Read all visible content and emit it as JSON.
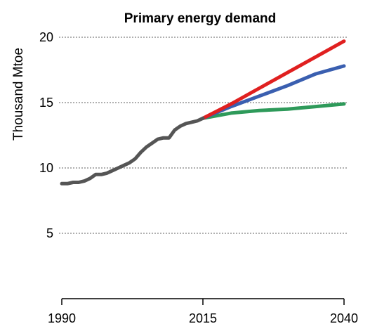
{
  "chart_data": {
    "type": "line",
    "title": "Primary energy demand",
    "ylabel": "Thousand Mtoe",
    "xlabel": "",
    "xlim": [
      1990,
      2040
    ],
    "ylim": [
      0,
      21
    ],
    "yticks": [
      5,
      10,
      15,
      20
    ],
    "xticks": [
      1990,
      2015,
      2040
    ],
    "grid": true,
    "series": [
      {
        "color": "#555555",
        "x": [
          1990,
          1991,
          1992,
          1993,
          1994,
          1995,
          1996,
          1997,
          1998,
          1999,
          2000,
          2001,
          2002,
          2003,
          2004,
          2005,
          2006,
          2007,
          2008,
          2009,
          2010,
          2011,
          2012,
          2013,
          2014,
          2015
        ],
        "y": [
          8.8,
          8.8,
          8.9,
          8.9,
          9.0,
          9.2,
          9.5,
          9.5,
          9.6,
          9.8,
          10.0,
          10.2,
          10.4,
          10.7,
          11.2,
          11.6,
          11.9,
          12.2,
          12.3,
          12.3,
          12.9,
          13.2,
          13.4,
          13.5,
          13.6,
          13.8
        ]
      },
      {
        "color": "#e02020",
        "x": [
          2015,
          2020,
          2025,
          2030,
          2035,
          2040
        ],
        "y": [
          13.8,
          14.9,
          16.1,
          17.3,
          18.5,
          19.7
        ]
      },
      {
        "color": "#3a5fb0",
        "x": [
          2015,
          2020,
          2025,
          2030,
          2035,
          2040
        ],
        "y": [
          13.8,
          14.7,
          15.5,
          16.3,
          17.2,
          17.8
        ]
      },
      {
        "color": "#2e9a5a",
        "x": [
          2015,
          2020,
          2025,
          2030,
          2035,
          2040
        ],
        "y": [
          13.8,
          14.2,
          14.4,
          14.5,
          14.7,
          14.9
        ]
      }
    ]
  }
}
